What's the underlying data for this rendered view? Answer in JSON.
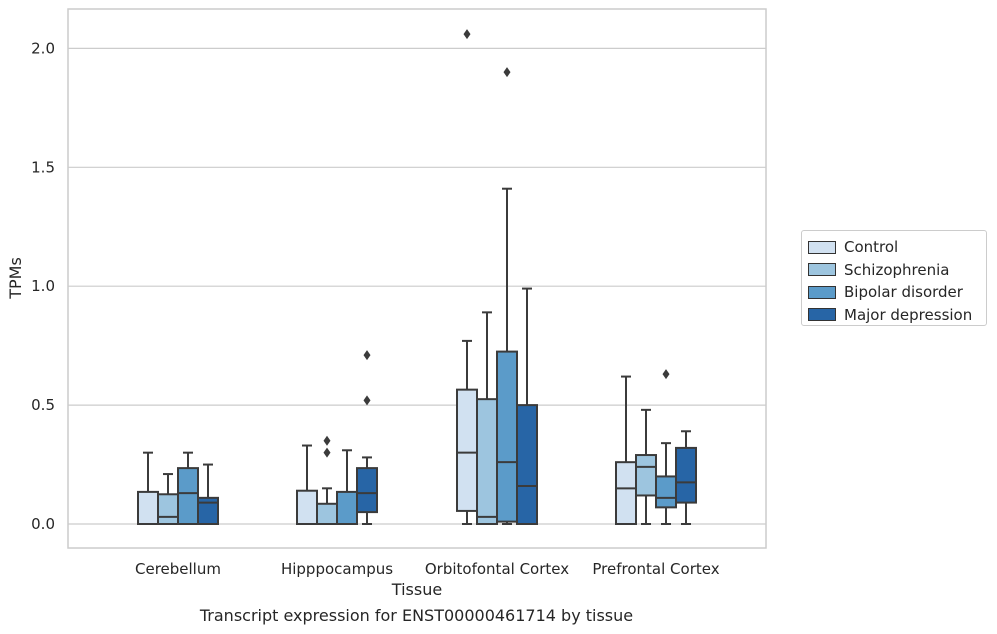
{
  "chart_data": {
    "type": "box",
    "caption": "Transcript expression for ENST00000461714 by tissue",
    "xlabel": "Tissue",
    "ylabel": "TPMs",
    "ylim": [
      -0.1,
      2.17
    ],
    "yticks": [
      "0.0",
      "0.5",
      "1.0",
      "1.5",
      "2.0"
    ],
    "grid": true,
    "legend_position": "right",
    "categories": [
      "Cerebellum",
      "Hipppocampus",
      "Orbitofontal Cortex",
      "Prefrontal Cortex"
    ],
    "series": [
      {
        "name": "Control",
        "color": "#d1e1f1",
        "boxes": [
          {
            "min": 0.0,
            "q1": 0.0,
            "median": 0.0,
            "q3": 0.135,
            "max": 0.3,
            "outliers": []
          },
          {
            "min": 0.0,
            "q1": 0.0,
            "median": 0.0,
            "q3": 0.14,
            "max": 0.33,
            "outliers": []
          },
          {
            "min": 0.0,
            "q1": 0.055,
            "median": 0.3,
            "q3": 0.565,
            "max": 0.77,
            "outliers": [
              2.06
            ]
          },
          {
            "min": 0.0,
            "q1": 0.0,
            "median": 0.15,
            "q3": 0.26,
            "max": 0.62,
            "outliers": []
          }
        ]
      },
      {
        "name": "Schizophrenia",
        "color": "#9dc5df",
        "boxes": [
          {
            "min": 0.0,
            "q1": 0.0,
            "median": 0.03,
            "q3": 0.125,
            "max": 0.21,
            "outliers": []
          },
          {
            "min": 0.0,
            "q1": 0.0,
            "median": 0.0,
            "q3": 0.085,
            "max": 0.15,
            "outliers": [
              0.3,
              0.35
            ]
          },
          {
            "min": 0.0,
            "q1": 0.0,
            "median": 0.03,
            "q3": 0.525,
            "max": 0.89,
            "outliers": []
          },
          {
            "min": 0.0,
            "q1": 0.12,
            "median": 0.24,
            "q3": 0.29,
            "max": 0.48,
            "outliers": []
          }
        ]
      },
      {
        "name": "Bipolar disorder",
        "color": "#5b9bc9",
        "boxes": [
          {
            "min": 0.0,
            "q1": 0.0,
            "median": 0.13,
            "q3": 0.235,
            "max": 0.3,
            "outliers": []
          },
          {
            "min": 0.0,
            "q1": 0.0,
            "median": 0.0,
            "q3": 0.135,
            "max": 0.31,
            "outliers": []
          },
          {
            "min": 0.0,
            "q1": 0.01,
            "median": 0.26,
            "q3": 0.725,
            "max": 1.41,
            "outliers": [
              1.9
            ]
          },
          {
            "min": 0.0,
            "q1": 0.07,
            "median": 0.11,
            "q3": 0.2,
            "max": 0.34,
            "outliers": [
              0.63
            ]
          }
        ]
      },
      {
        "name": "Major depression",
        "color": "#2765a6",
        "boxes": [
          {
            "min": 0.0,
            "q1": 0.0,
            "median": 0.09,
            "q3": 0.11,
            "max": 0.25,
            "outliers": []
          },
          {
            "min": 0.0,
            "q1": 0.05,
            "median": 0.13,
            "q3": 0.235,
            "max": 0.28,
            "outliers": [
              0.52,
              0.71
            ]
          },
          {
            "min": 0.0,
            "q1": 0.0,
            "median": 0.16,
            "q3": 0.5,
            "max": 0.99,
            "outliers": []
          },
          {
            "min": 0.0,
            "q1": 0.09,
            "median": 0.175,
            "q3": 0.32,
            "max": 0.39,
            "outliers": []
          }
        ]
      }
    ]
  }
}
